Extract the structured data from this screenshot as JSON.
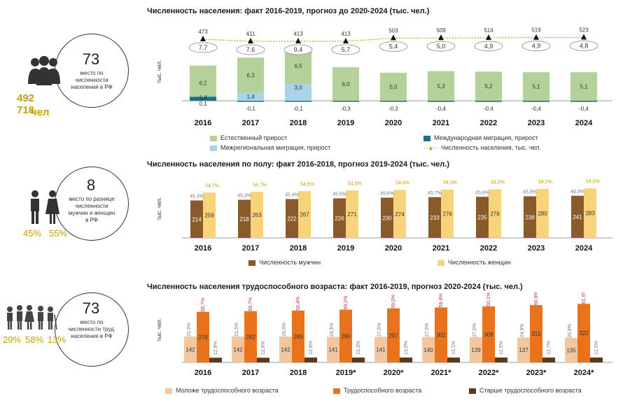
{
  "panel1": {
    "title": "Численность населения: факт 2016-2019, прогноз до 2020-2024 (тыс. чел.)",
    "rank": "73",
    "rank_text": "место по численности населения в РФ",
    "population": "492 718",
    "population_unit": "чел",
    "ylabel": "тыс. чел."
  },
  "panel2": {
    "title": "Численность населения по полу: факт 2016-2018, прогноз 2019-2024 (тыс. чел.)",
    "rank": "8",
    "rank_text": "место по разнице численности мужчин и женщин в РФ",
    "male_pct": "45%",
    "female_pct": "55%",
    "ylabel": "тыс. чел."
  },
  "panel3": {
    "title": "Численность населения трудоспособного возраста: факт 2016-2019, прогноз 2020-2024 (тыс. чел.)",
    "rank": "73",
    "rank_text": "место по численности труд. населения в РФ",
    "pct_labels": [
      "29%",
      "58%",
      "13%"
    ],
    "ylabel": "тыс. чел."
  },
  "colors": {
    "green": "#b5d19a",
    "lightblue": "#a9d3e8",
    "teal": "#1f6f8b",
    "brown": "#8b5a2b",
    "yellow": "#f7d37a",
    "peach": "#f4c6a0",
    "orange": "#e8731c",
    "darkbrown": "#5a3a1a"
  },
  "chart_data": [
    {
      "type": "bar",
      "categories": [
        "2016",
        "2017",
        "2018",
        "2019",
        "2020",
        "2021",
        "2022",
        "2023",
        "2024"
      ],
      "series": [
        {
          "name": "Естественный прирост",
          "values": [
            6.2,
            6.3,
            6.5,
            6.0,
            5.0,
            5.3,
            5.2,
            5.1,
            5.1
          ]
        },
        {
          "name": "Межрегиональная миграция, прирост",
          "values": [
            0.1,
            1.4,
            3.0,
            0,
            0,
            0,
            0,
            0,
            0
          ]
        },
        {
          "name": "Международная миграция, прирост",
          "values": [
            1.4,
            -0.1,
            -0.1,
            -0.3,
            -0.3,
            -0.4,
            -0.4,
            -0.4,
            -0.4
          ]
        },
        {
          "name": "Численность населения, тыс. чел.",
          "values": [
            473,
            411,
            413,
            413,
            503,
            509,
            514,
            519,
            523
          ]
        }
      ],
      "bar_labels": [
        [
          "6,2",
          "0,1",
          "1,4"
        ],
        [
          "6,3",
          "1,4",
          "-0,1"
        ],
        [
          "6,5",
          "3,0",
          "-0,1"
        ],
        [
          "6,0",
          "",
          "-0,3"
        ],
        [
          "5,0",
          "",
          "-0,3"
        ],
        [
          "5,3",
          "",
          "-0,4"
        ],
        [
          "5,2",
          "",
          "-0,4"
        ],
        [
          "5,1",
          "",
          "-0,4"
        ],
        [
          "5,1",
          "",
          "-0,4"
        ]
      ],
      "line_labels": [
        "473",
        "411",
        "413",
        "413",
        "503",
        "509",
        "514",
        "519",
        "523"
      ],
      "circle_labels": [
        "7,7",
        "7,6",
        "9,4",
        "5,7",
        "5,4",
        "5,0",
        "4,9",
        "4,9",
        "4,8"
      ]
    },
    {
      "type": "bar",
      "categories": [
        "2016",
        "2017",
        "2018",
        "2019",
        "2020",
        "2021",
        "2022",
        "2023",
        "2024"
      ],
      "series": [
        {
          "name": "Численность мужчин",
          "values": [
            214,
            218,
            222,
            226,
            230,
            233,
            235,
            238,
            241
          ]
        },
        {
          "name": "Численность женщин",
          "values": [
            259,
            263,
            267,
            271,
            274,
            276,
            278,
            280,
            283
          ]
        }
      ],
      "pct_male": [
        "45,3%",
        "45,3%",
        "45,4%",
        "45,5%",
        "45,6%",
        "45,7%",
        "45,8%",
        "45,9%",
        "46,0%"
      ],
      "pct_female": [
        "54,7%",
        "54,7%",
        "54,6%",
        "54,5%",
        "54,4%",
        "54,3%",
        "54,2%",
        "54,1%",
        "54,0%"
      ]
    },
    {
      "type": "bar",
      "categories": [
        "2016",
        "2017",
        "2018",
        "2019*",
        "2020*",
        "2021*",
        "2022*",
        "2023*",
        "2024*"
      ],
      "series": [
        {
          "name": "Моложе трудоспособного возраста",
          "values": [
            142,
            142,
            142,
            141,
            141,
            140,
            139,
            137,
            135
          ]
        },
        {
          "name": "Трудоспособного возраста",
          "values": [
            278,
            282,
            285,
            290,
            297,
            302,
            308,
            315,
            322
          ]
        },
        {
          "name": "Старше трудоспособного возраста",
          "values": [
            56,
            56,
            58,
            58,
            58,
            58,
            58,
            58,
            58
          ]
        }
      ],
      "pct_young": [
        "21,5%",
        "21,5%",
        "29,0%",
        "24,5%",
        "27,5%",
        "27,5%",
        "27,0%",
        "24,9%",
        "25,9%"
      ],
      "pct_work": [
        "58,7%",
        "58,7%",
        "58,4%",
        "58,2%",
        "59,0%",
        "59,4%",
        "60,1%",
        "60,8%",
        "61,6%"
      ],
      "pct_old": [
        "12,8%",
        "12,8%",
        "12,8%",
        "13,3%",
        "13,0%",
        "13,1%",
        "12,9%",
        "12,7%",
        "12,5%"
      ]
    }
  ]
}
